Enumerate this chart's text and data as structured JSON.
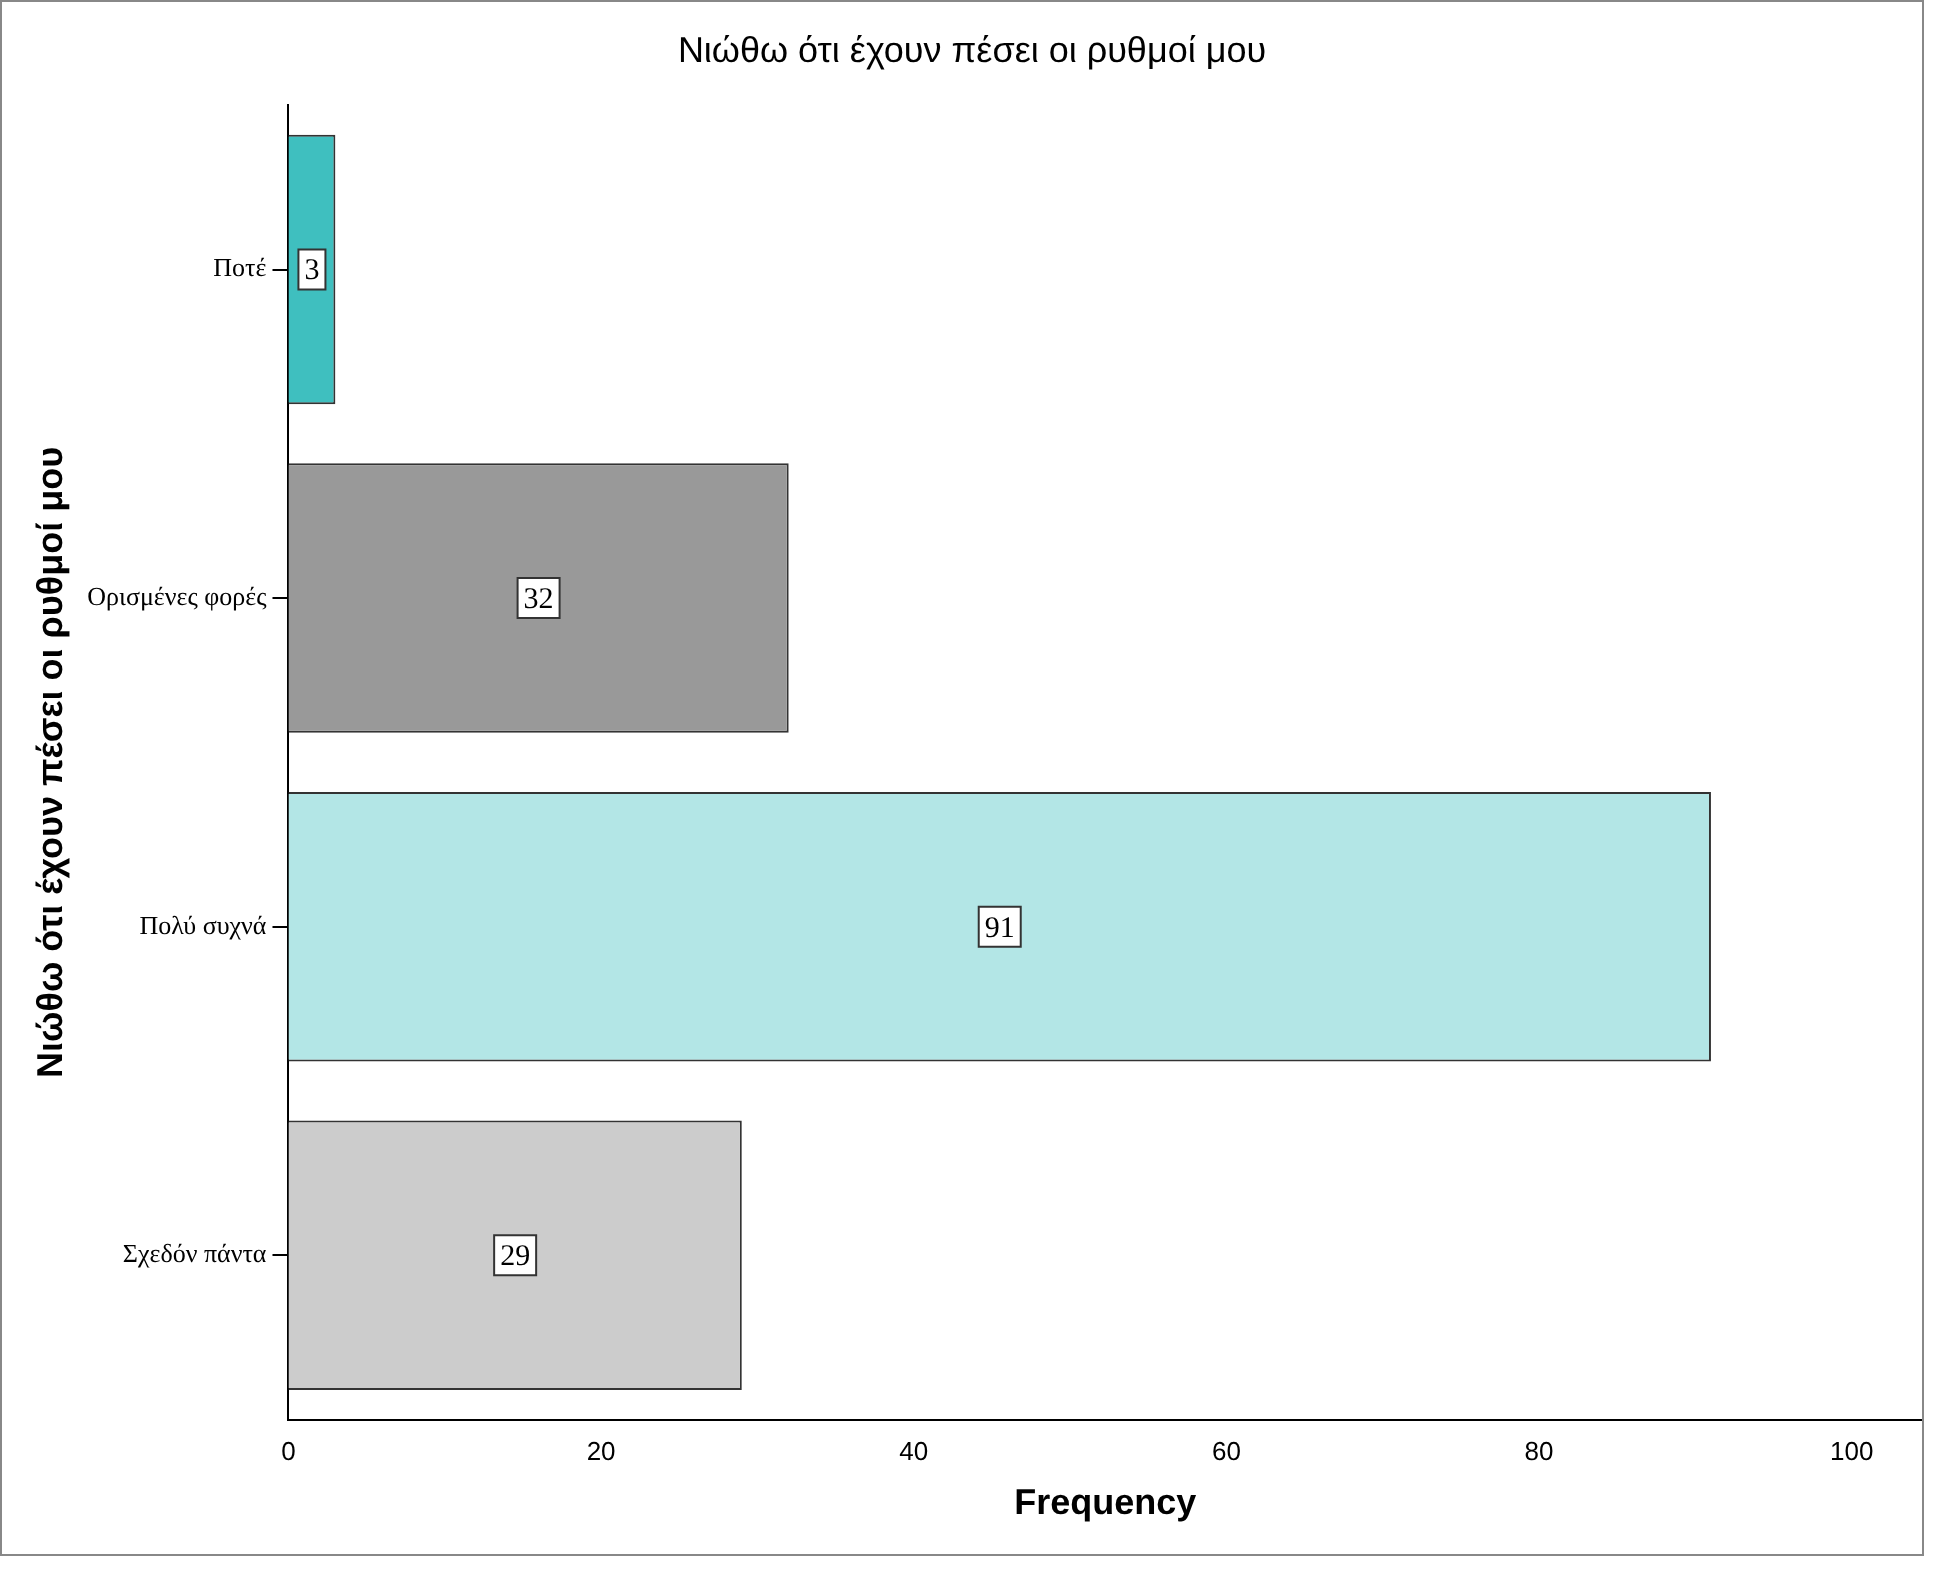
{
  "chart_data": {
    "type": "bar",
    "orientation": "horizontal",
    "title": "Νιώθω ότι έχουν πέσει οι ρυθμοί μου",
    "xlabel": "Frequency",
    "ylabel": "Νιώθω ότι έχουν πέσει οι ρυθμοί μου",
    "categories": [
      "Ποτέ",
      "Ορισμένες φορές",
      "Πολύ συχνά",
      "Σχεδόν πάντα"
    ],
    "values": [
      3,
      32,
      91,
      29
    ],
    "colors": [
      "#3fbfbf",
      "#999999",
      "#b3e6e6",
      "#cccccc"
    ],
    "xlim": [
      0,
      104.5
    ],
    "xticks": [
      0,
      20,
      40,
      60,
      80,
      100
    ],
    "grid": false,
    "legend": false,
    "data_labels": true
  }
}
